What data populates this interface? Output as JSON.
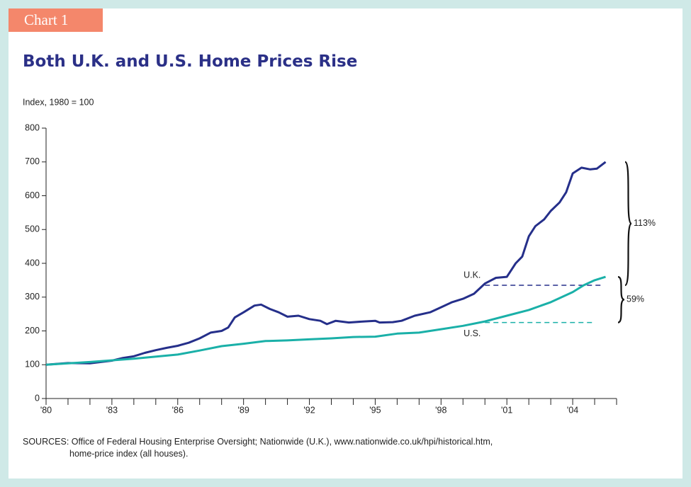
{
  "header": {
    "tab": "Chart 1"
  },
  "chart_data": {
    "type": "line",
    "title": "Both U.K. and U.S. Home Prices Rise",
    "y_label": "Index, 1980 = 100",
    "xlim": [
      1980,
      2006
    ],
    "ylim": [
      0,
      800
    ],
    "yticks": [
      0,
      100,
      200,
      300,
      400,
      500,
      600,
      700,
      800
    ],
    "xticks": [
      {
        "value": 1980,
        "label": "'80"
      },
      {
        "value": 1983,
        "label": "'83"
      },
      {
        "value": 1986,
        "label": "'86"
      },
      {
        "value": 1989,
        "label": "'89"
      },
      {
        "value": 1992,
        "label": "'92"
      },
      {
        "value": 1995,
        "label": "'95"
      },
      {
        "value": 1998,
        "label": "'98"
      },
      {
        "value": 2001,
        "label": "'01"
      },
      {
        "value": 2004,
        "label": "'04"
      }
    ],
    "xminorticks": [
      1981,
      1982,
      1984,
      1985,
      1987,
      1988,
      1990,
      1991,
      1993,
      1994,
      1996,
      1997,
      1999,
      2000,
      2002,
      2003,
      2005,
      2006
    ],
    "series": [
      {
        "name": "U.K.",
        "color": "#252f8a",
        "x": [
          1980,
          1981,
          1982,
          1983,
          1983.5,
          1984,
          1984.5,
          1985,
          1985.5,
          1986,
          1986.5,
          1987,
          1987.5,
          1988,
          1988.3,
          1988.6,
          1989,
          1989.5,
          1989.8,
          1990.2,
          1990.6,
          1991,
          1991.5,
          1992,
          1992.5,
          1992.8,
          1993.2,
          1993.8,
          1994.5,
          1995,
          1995.2,
          1995.8,
          1996.2,
          1996.8,
          1997.5,
          1998,
          1998.5,
          1999,
          1999.5,
          2000,
          2000.5,
          2001,
          2001.4,
          2001.7,
          2002,
          2002.3,
          2002.7,
          2003,
          2003.4,
          2003.7,
          2004,
          2004.4,
          2004.8,
          2005.1,
          2005.5
        ],
        "values": [
          100,
          105,
          104,
          112,
          120,
          125,
          135,
          143,
          150,
          156,
          165,
          178,
          195,
          200,
          210,
          240,
          255,
          275,
          278,
          265,
          255,
          242,
          245,
          235,
          230,
          220,
          230,
          225,
          228,
          230,
          225,
          226,
          230,
          245,
          255,
          270,
          285,
          295,
          310,
          340,
          357,
          360,
          400,
          420,
          480,
          510,
          530,
          555,
          580,
          610,
          666,
          683,
          678,
          680,
          700
        ],
        "ref_value": 335,
        "ref_x": [
          2000,
          2005.3
        ],
        "change_label": "113%"
      },
      {
        "name": "U.S.",
        "color": "#1ab0a8",
        "x": [
          1980,
          1982,
          1984,
          1986,
          1987,
          1988,
          1989,
          1990,
          1991,
          1992,
          1993,
          1994,
          1995,
          1996,
          1997,
          1998,
          1999,
          2000,
          2001,
          2002,
          2003,
          2003.5,
          2004,
          2004.5,
          2005,
          2005.5
        ],
        "values": [
          100,
          108,
          118,
          130,
          142,
          155,
          162,
          170,
          172,
          175,
          178,
          182,
          183,
          192,
          195,
          205,
          215,
          228,
          245,
          262,
          285,
          300,
          315,
          335,
          350,
          360
        ],
        "ref_value": 225,
        "ref_x": [
          2000,
          2005
        ],
        "change_label": "59%"
      }
    ]
  },
  "sources": [
    "SOURCES: Office of Federal Housing Enterprise Oversight; Nationwide (U.K.), www.nationwide.co.uk/hpi/historical.htm,",
    "home-price index (all houses)."
  ]
}
